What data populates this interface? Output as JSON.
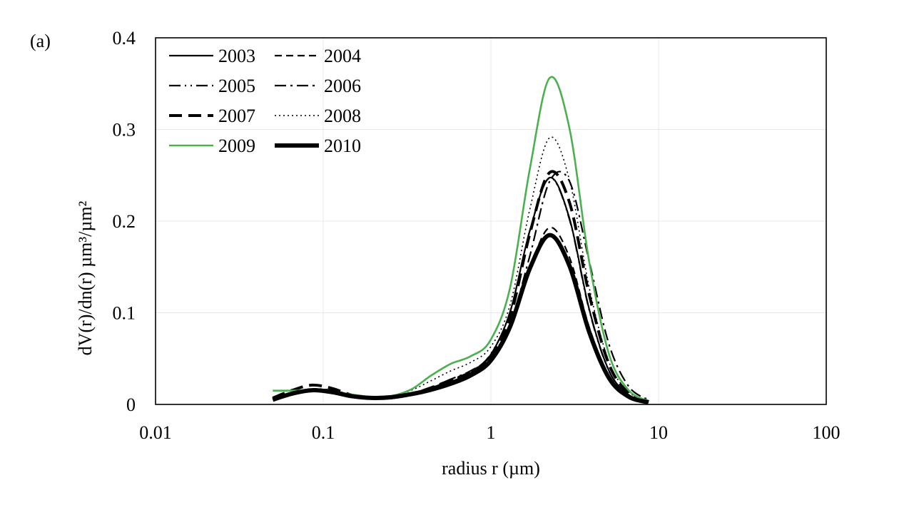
{
  "panel_label": "(a)",
  "chart_data": {
    "type": "line",
    "title": "",
    "xlabel": "radius  r (µm)",
    "ylabel": "dV(r)/dn(r) µm³/µm²",
    "xscale": "log",
    "xlim": [
      0.01,
      100
    ],
    "ylim": [
      0,
      0.4
    ],
    "x_ticks": [
      0.01,
      0.1,
      1,
      10,
      100
    ],
    "x_tick_labels": [
      "0.01",
      "0.1",
      "1",
      "10",
      "100"
    ],
    "y_ticks": [
      0,
      0.1,
      0.2,
      0.3,
      0.4
    ],
    "y_tick_labels": [
      "0",
      "0.1",
      "0.2",
      "0.3",
      "0.4"
    ],
    "grid": true,
    "legend_position": "top-left",
    "x": [
      0.05,
      0.065604,
      0.086077,
      0.112939,
      0.148184,
      0.194428,
      0.255104,
      0.334716,
      0.439173,
      0.576227,
      0.756052,
      0.991996,
      1.301572,
      1.707757,
      2.240702,
      2.939966,
      3.857453,
      5.061259,
      6.640744,
      8.713147
    ],
    "series": [
      {
        "name": "2003",
        "style": "solid",
        "color": "#000000",
        "width": 2.2,
        "values": [
          0.0065,
          0.0127,
          0.0157,
          0.0141,
          0.0099,
          0.0074,
          0.0078,
          0.0113,
          0.0173,
          0.0247,
          0.0343,
          0.0535,
          0.1009,
          0.1897,
          0.2474,
          0.2032,
          0.104,
          0.0368,
          0.0104,
          0.0027
        ]
      },
      {
        "name": "2004",
        "style": "dash",
        "color": "#000000",
        "width": 2.2,
        "values": [
          0.0063,
          0.013,
          0.0167,
          0.0147,
          0.0101,
          0.0074,
          0.0078,
          0.0114,
          0.0175,
          0.0247,
          0.0331,
          0.0483,
          0.0835,
          0.1485,
          0.1929,
          0.1605,
          0.0842,
          0.0306,
          0.0089,
          0.0024
        ]
      },
      {
        "name": "2005",
        "style": "dashdotdot",
        "color": "#000000",
        "width": 2.2,
        "values": [
          0.0062,
          0.0128,
          0.0169,
          0.0154,
          0.0106,
          0.0075,
          0.0076,
          0.0111,
          0.0179,
          0.0264,
          0.0358,
          0.0542,
          0.1009,
          0.1897,
          0.247,
          0.2021,
          0.103,
          0.0364,
          0.0103,
          0.0027
        ]
      },
      {
        "name": "2006",
        "style": "dashdot",
        "color": "#000000",
        "width": 2.2,
        "values": [
          0.0062,
          0.0128,
          0.0167,
          0.0151,
          0.0105,
          0.0074,
          0.0074,
          0.0109,
          0.0181,
          0.0275,
          0.0366,
          0.052,
          0.0878,
          0.1622,
          0.2434,
          0.2436,
          0.1562,
          0.0657,
          0.0196,
          0.0049
        ]
      },
      {
        "name": "2007",
        "style": "longdash",
        "color": "#000000",
        "width": 4,
        "values": [
          0.007,
          0.0155,
          0.0211,
          0.0175,
          0.0102,
          0.0068,
          0.0072,
          0.011,
          0.0182,
          0.0265,
          0.0352,
          0.0519,
          0.095,
          0.1863,
          0.253,
          0.2206,
          0.12,
          0.0438,
          0.0124,
          0.0032
        ]
      },
      {
        "name": "2008",
        "style": "dot",
        "color": "#000000",
        "width": 1.6,
        "values": [
          0.007,
          0.0132,
          0.0168,
          0.015,
          0.0106,
          0.008,
          0.0093,
          0.0154,
          0.0258,
          0.0366,
          0.0459,
          0.0622,
          0.1086,
          0.213,
          0.291,
          0.2449,
          0.1276,
          0.0464,
          0.0137,
          0.0035
        ]
      },
      {
        "name": "2009",
        "style": "solid",
        "color": "#4caf50",
        "width": 2.6,
        "values": [
          0.015,
          0.015,
          0.015,
          0.014,
          0.0108,
          0.0083,
          0.0092,
          0.0164,
          0.0314,
          0.0443,
          0.0525,
          0.0697,
          0.1274,
          0.2571,
          0.3562,
          0.3014,
          0.1557,
          0.0549,
          0.0153,
          0.0039
        ]
      },
      {
        "name": "2010",
        "style": "solid",
        "color": "#000000",
        "width": 6,
        "values": [
          0.0052,
          0.0119,
          0.0155,
          0.0134,
          0.009,
          0.0071,
          0.0079,
          0.0112,
          0.016,
          0.0226,
          0.0316,
          0.0473,
          0.0848,
          0.1484,
          0.1847,
          0.1514,
          0.0791,
          0.0288,
          0.0084,
          0.0023
        ]
      }
    ]
  }
}
